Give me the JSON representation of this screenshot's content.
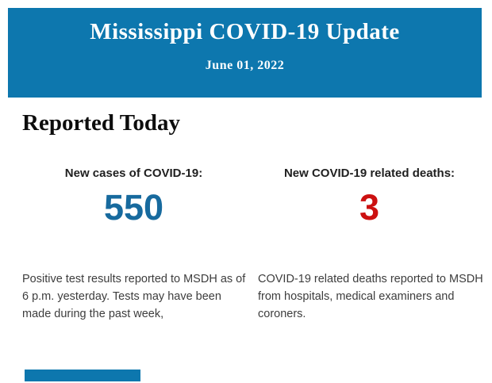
{
  "header": {
    "title": "Mississippi COVID-19 Update",
    "date": "June 01, 2022",
    "background_color": "#0d77ae",
    "text_color": "#ffffff"
  },
  "section": {
    "heading": "Reported Today"
  },
  "stats": {
    "cases": {
      "label": "New cases of COVID-19:",
      "value": "550",
      "value_color": "#176a9e",
      "description": "Positive test results reported to MSDH as of 6 p.m. yesterday. Tests may have been made during the past week,"
    },
    "deaths": {
      "label": "New COVID-19 related deaths:",
      "value": "3",
      "value_color": "#cc1111",
      "description": "COVID-19 related deaths reported to MSDH from hospitals, medical examiners and coroners."
    }
  },
  "partial_next_section": {
    "color": "#0d77ae"
  }
}
